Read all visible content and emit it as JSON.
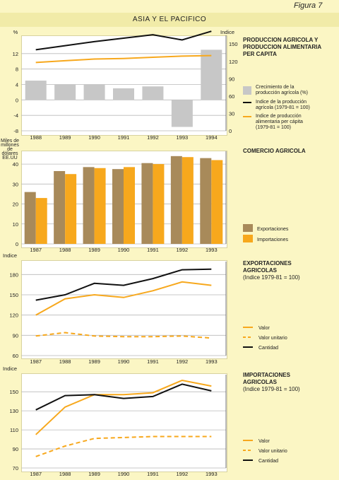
{
  "figure_label": "Figura 7",
  "page_title": "ASIA Y EL PACIFICO",
  "colors": {
    "background": "#fbf6c4",
    "panel": "#ffffff",
    "grid": "#b9b9b9",
    "bar_gray": "#c7c7c7",
    "brown": "#a88a5a",
    "orange": "#f7a81d",
    "black": "#111111"
  },
  "chart_data": [
    {
      "id": "production",
      "type": "bar",
      "title": [
        "PRODUCCION AGRICOLA Y",
        "PRODUCCION ALIMENTARIA",
        "PER CAPITA"
      ],
      "left_axis_label": "%",
      "right_axis_label": "Indice",
      "ylim": [
        -8,
        16
      ],
      "yticks": [
        -8,
        -4,
        0,
        4,
        8,
        12
      ],
      "right_ylim": [
        0,
        160
      ],
      "right_yticks": [
        0,
        30,
        60,
        90,
        120,
        150
      ],
      "categories": [
        "1988",
        "1989",
        "1990",
        "1991",
        "1992",
        "1993",
        "1994"
      ],
      "grid": true,
      "series": [
        {
          "name": "Crecimiento de la producción agrícola (%)",
          "kind": "bar",
          "axis": "left",
          "color": "#c7c7c7",
          "values": [
            5,
            4,
            4,
            3,
            3.5,
            -7,
            13
          ]
        },
        {
          "name": "Indice de la producción agrícola (1979-81 = 100)",
          "kind": "line",
          "axis": "right",
          "color": "#111111",
          "values": [
            140,
            147,
            154,
            160,
            166,
            157,
            172
          ]
        },
        {
          "name": "Indice de producción alimentaria per cápita (1979-81 = 100)",
          "kind": "line",
          "axis": "right",
          "color": "#f7a81d",
          "values": [
            118,
            121,
            124,
            125,
            127,
            129,
            130
          ]
        }
      ],
      "legend_labels": [
        [
          "Crecimiento de la",
          "producción agrícola (%)"
        ],
        [
          "Indice de la producción",
          "agrícola (1979-81 = 100)"
        ],
        [
          "Indice de producción",
          "alimentaria per cápita",
          "(1979-81 = 100)"
        ]
      ]
    },
    {
      "id": "trade",
      "type": "bar",
      "title": [
        "COMERCIO AGRICOLA"
      ],
      "left_axis_label": [
        "Miles de",
        "millones",
        "de",
        "dólares",
        "EE.UU"
      ],
      "ylim": [
        0,
        45
      ],
      "yticks": [
        0,
        10,
        20,
        30,
        40
      ],
      "categories": [
        "1987",
        "1988",
        "1989",
        "1990",
        "1991",
        "1992",
        "1993"
      ],
      "grid": true,
      "series": [
        {
          "name": "Exportaciones",
          "kind": "bar",
          "color": "#a88a5a",
          "values": [
            26,
            36.5,
            38.5,
            37.5,
            40.5,
            44,
            43
          ]
        },
        {
          "name": "Importaciones",
          "kind": "bar",
          "color": "#f7a81d",
          "values": [
            23,
            35,
            38,
            38.5,
            40,
            43.5,
            42
          ]
        }
      ]
    },
    {
      "id": "exports",
      "type": "line",
      "title": [
        "EXPORTACIONES",
        "AGRICOLAS"
      ],
      "subtitle": "(Indice 1979-81 = 100)",
      "left_axis_label": "Indice",
      "ylim": [
        60,
        195
      ],
      "yticks": [
        60,
        90,
        120,
        150,
        180
      ],
      "categories": [
        "1987",
        "1988",
        "1989",
        "1990",
        "1991",
        "1992",
        "1993"
      ],
      "grid": true,
      "series": [
        {
          "name": "Valor",
          "style": "solid",
          "color": "#f7a81d",
          "values": [
            120,
            144,
            150,
            146,
            156,
            169,
            164
          ]
        },
        {
          "name": "Valor unitario",
          "style": "dashed",
          "color": "#f7a81d",
          "values": [
            89,
            94,
            89,
            88,
            88,
            89,
            86
          ]
        },
        {
          "name": "Cantidad",
          "style": "solid",
          "color": "#111111",
          "values": [
            142,
            150,
            167,
            164,
            174,
            187,
            188
          ]
        }
      ]
    },
    {
      "id": "imports",
      "type": "line",
      "title": [
        "IMPORTACIONES",
        "AGRICOLAS"
      ],
      "subtitle": "(Indice 1979-81 = 100)",
      "left_axis_label": "Indice",
      "ylim": [
        70,
        165
      ],
      "yticks": [
        70,
        90,
        110,
        130,
        150
      ],
      "categories": [
        "1987",
        "1988",
        "1989",
        "1990",
        "1991",
        "1992",
        "1993"
      ],
      "grid": true,
      "series": [
        {
          "name": "Valor",
          "style": "solid",
          "color": "#f7a81d",
          "values": [
            105,
            134,
            147,
            147,
            149,
            162,
            156
          ]
        },
        {
          "name": "Valor unitario",
          "style": "dashed",
          "color": "#f7a81d",
          "values": [
            82,
            93,
            101,
            102,
            103,
            103,
            103
          ]
        },
        {
          "name": "Cantidad",
          "style": "solid",
          "color": "#111111",
          "values": [
            131,
            146,
            147,
            143,
            145,
            158,
            151
          ]
        }
      ]
    }
  ]
}
